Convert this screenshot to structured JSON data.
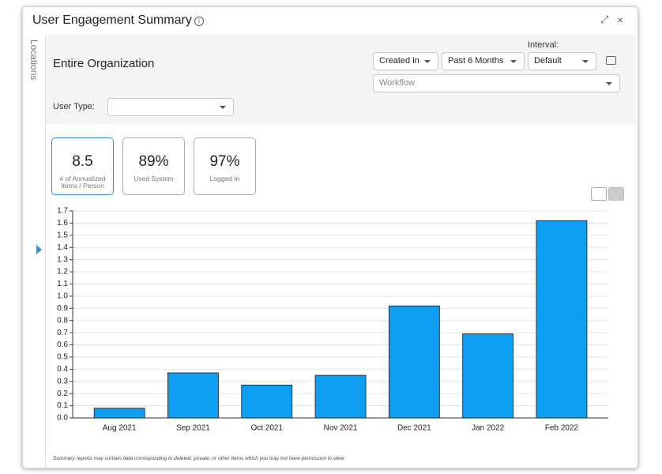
{
  "header": {
    "title": "User Engagement Summary"
  },
  "sidebar": {
    "label": "Locations"
  },
  "filters": {
    "scope": "Entire Organization",
    "date_field": "Created in",
    "date_range": "Past 6 Months",
    "interval_label": "Interval:",
    "interval": "Default",
    "workflow_placeholder": "Workflow",
    "user_type_label": "User Type:"
  },
  "kpis": [
    {
      "value": "8.5",
      "label": "# of Annualized Items / Person"
    },
    {
      "value": "89%",
      "label": "Used System"
    },
    {
      "value": "97%",
      "label": "Logged In"
    }
  ],
  "chart_data": {
    "type": "bar",
    "categories": [
      "Aug 2021",
      "Sep 2021",
      "Oct 2021",
      "Nov 2021",
      "Dec 2021",
      "Jan 2022",
      "Feb 2022"
    ],
    "values": [
      0.08,
      0.37,
      0.27,
      0.35,
      0.92,
      0.69,
      1.62
    ],
    "color": "#0d9ef2",
    "ylim": [
      0,
      1.7
    ],
    "yticks": [
      {
        "value": 0,
        "label": "0.0"
      },
      0.1,
      0.2,
      0.3,
      0.4,
      0.5,
      0.6,
      0.7,
      0.8,
      0.9,
      {
        "value": 1,
        "label": "1.0"
      },
      1.1,
      1.2,
      1.3,
      1.4,
      1.5,
      1.6,
      1.7
    ],
    "grid": true
  },
  "footer": {
    "note": "Summary reports may contain data corresponding to deleted, private, or other Items which you may not have permission to view."
  }
}
